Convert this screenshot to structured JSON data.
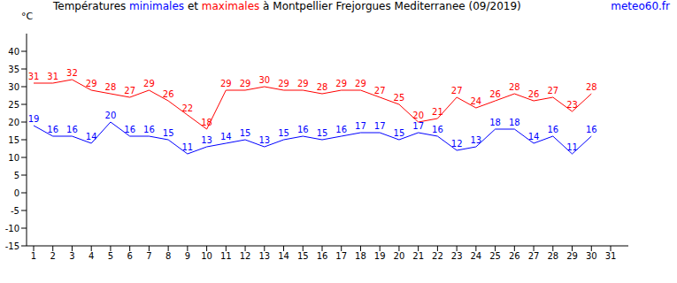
{
  "chart_data": {
    "type": "line",
    "title": "Températures minimales et maximales à Montpellier Frejorgues Mediterranee (09/2019)",
    "source": "meteo60.fr",
    "y_label": "°C",
    "categories": [
      "1",
      "2",
      "3",
      "4",
      "5",
      "6",
      "7",
      "8",
      "9",
      "10",
      "11",
      "12",
      "13",
      "14",
      "15",
      "16",
      "17",
      "18",
      "19",
      "20",
      "21",
      "22",
      "23",
      "24",
      "25",
      "26",
      "27",
      "28",
      "29",
      "30",
      "31"
    ],
    "series": [
      {
        "name": "minimales",
        "color": "#0000ff",
        "values": [
          19,
          16,
          16,
          14,
          20,
          16,
          16,
          15,
          11,
          13,
          14,
          15,
          13,
          15,
          16,
          15,
          16,
          17,
          17,
          15,
          17,
          16,
          12,
          13,
          18,
          18,
          14,
          16,
          11,
          16,
          null
        ]
      },
      {
        "name": "maximales",
        "color": "#ff0000",
        "values": [
          31,
          31,
          32,
          29,
          28,
          27,
          29,
          26,
          22,
          18,
          29,
          29,
          30,
          29,
          29,
          28,
          29,
          29,
          27,
          25,
          20,
          21,
          27,
          24,
          26,
          28,
          26,
          27,
          23,
          28,
          null
        ]
      }
    ],
    "ylim": [
      -15,
      45
    ],
    "yticks": [
      -15,
      -10,
      -5,
      0,
      5,
      10,
      15,
      20,
      25,
      30,
      35,
      40
    ],
    "data_labels": true,
    "grid": false
  }
}
